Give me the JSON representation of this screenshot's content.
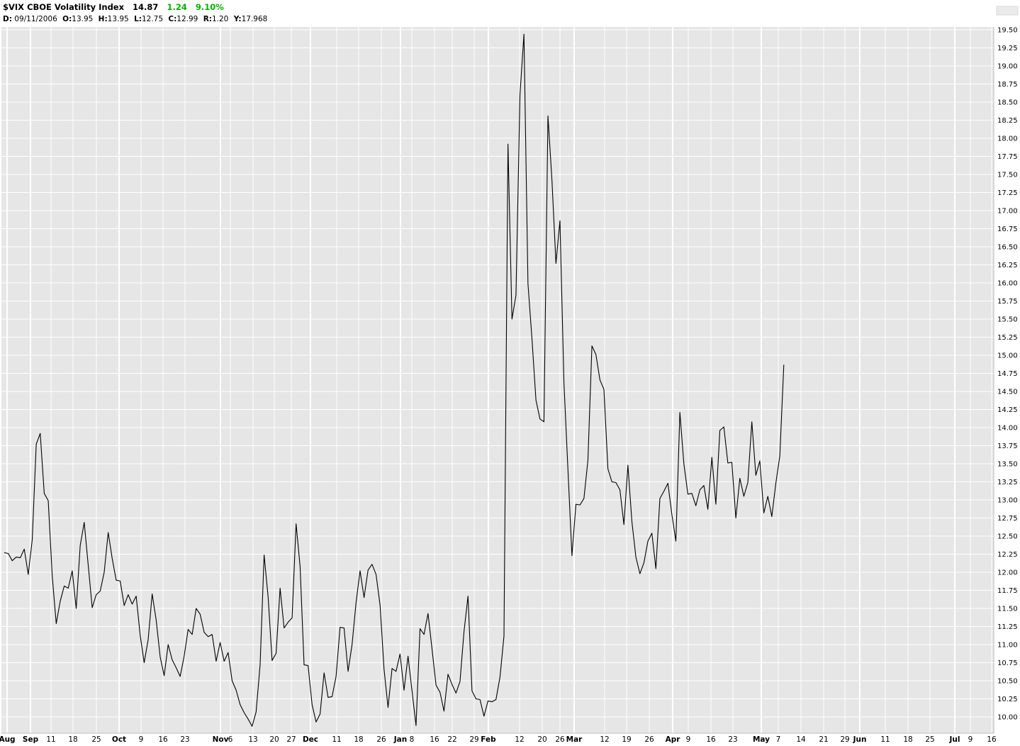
{
  "header": {
    "symbol": "$VIX",
    "name": "CBOE Volatility Index",
    "last": "14.87",
    "change": "1.24",
    "change_pct": "9.10%",
    "change_color": "#00b000",
    "date_label": "D:",
    "date": "09/11/2006",
    "open_label": "O:",
    "open": "13.95",
    "high_label": "H:",
    "high": "13.95",
    "low_label": "L:",
    "low": "12.75",
    "close_label": "C:",
    "close": "12.99",
    "range_label": "R:",
    "range": "1.20",
    "y_label": "Y:",
    "y": "17.968"
  },
  "colors": {
    "plot_background": "#e6e6e6",
    "grid_minor": "#ffffff",
    "line": "#000000"
  },
  "chart_data": {
    "type": "line",
    "title": "",
    "xlabel": "",
    "ylabel": "",
    "ylim": [
      9.95,
      19.55
    ],
    "y_axis_side": "right",
    "grid": true,
    "y_ticks": [
      "10.00",
      "10.25",
      "10.50",
      "10.75",
      "11.00",
      "11.25",
      "11.50",
      "11.75",
      "12.00",
      "12.25",
      "12.50",
      "12.75",
      "13.00",
      "13.25",
      "13.50",
      "13.75",
      "14.00",
      "14.25",
      "14.50",
      "14.75",
      "15.00",
      "15.25",
      "15.50",
      "15.75",
      "16.00",
      "16.25",
      "16.50",
      "16.75",
      "17.00",
      "17.25",
      "17.50",
      "17.75",
      "18.00",
      "18.25",
      "18.50",
      "18.75",
      "19.00",
      "19.25",
      "19.50"
    ],
    "x_ticks": [
      {
        "label": "Aug",
        "major": true
      },
      {
        "label": "Sep",
        "major": true
      },
      {
        "label": "11",
        "major": false
      },
      {
        "label": "18",
        "major": false
      },
      {
        "label": "25",
        "major": false
      },
      {
        "label": "Oct",
        "major": true
      },
      {
        "label": "9",
        "major": false
      },
      {
        "label": "16",
        "major": false
      },
      {
        "label": "23",
        "major": false
      },
      {
        "label": "Nov",
        "major": true
      },
      {
        "label": "6",
        "major": false
      },
      {
        "label": "13",
        "major": false
      },
      {
        "label": "20",
        "major": false
      },
      {
        "label": "27",
        "major": false
      },
      {
        "label": "Dec",
        "major": true
      },
      {
        "label": "11",
        "major": false
      },
      {
        "label": "18",
        "major": false
      },
      {
        "label": "26",
        "major": false
      },
      {
        "label": "Jan",
        "major": true
      },
      {
        "label": "8",
        "major": false
      },
      {
        "label": "16",
        "major": false
      },
      {
        "label": "22",
        "major": false
      },
      {
        "label": "29",
        "major": false
      },
      {
        "label": "Feb",
        "major": true
      },
      {
        "label": "12",
        "major": false
      },
      {
        "label": "20",
        "major": false
      },
      {
        "label": "26",
        "major": false
      },
      {
        "label": "Mar",
        "major": true
      },
      {
        "label": "12",
        "major": false
      },
      {
        "label": "19",
        "major": false
      },
      {
        "label": "26",
        "major": false
      },
      {
        "label": "Apr",
        "major": true
      },
      {
        "label": "9",
        "major": false
      },
      {
        "label": "16",
        "major": false
      },
      {
        "label": "23",
        "major": false
      },
      {
        "label": "May",
        "major": true
      },
      {
        "label": "7",
        "major": false
      },
      {
        "label": "14",
        "major": false
      },
      {
        "label": "21",
        "major": false
      },
      {
        "label": "29",
        "major": false
      },
      {
        "label": "Jun",
        "major": true
      },
      {
        "label": "11",
        "major": false
      },
      {
        "label": "18",
        "major": false
      },
      {
        "label": "25",
        "major": false
      },
      {
        "label": "Jul",
        "major": true
      },
      {
        "label": "9",
        "major": false
      },
      {
        "label": "16",
        "major": false
      }
    ],
    "series": [
      {
        "values": [
          12.27,
          12.26,
          12.16,
          12.21,
          12.2,
          12.32,
          11.97,
          12.45,
          13.77,
          13.92,
          13.09,
          12.99,
          11.95,
          11.29,
          11.6,
          11.81,
          11.78,
          12.02,
          11.5,
          12.37,
          12.69,
          12.1,
          11.51,
          11.69,
          11.74,
          12.0,
          12.55,
          12.19,
          11.89,
          11.88,
          11.54,
          11.69,
          11.56,
          11.67,
          11.13,
          10.75,
          11.07,
          11.7,
          11.34,
          10.83,
          10.57,
          11.0,
          10.79,
          10.68,
          10.56,
          10.84,
          11.21,
          11.14,
          11.5,
          11.42,
          11.17,
          11.11,
          11.14,
          10.77,
          11.03,
          10.77,
          10.89,
          10.5,
          10.37,
          10.17,
          10.06,
          9.97,
          9.87,
          10.07,
          10.72,
          12.24,
          11.66,
          10.78,
          10.88,
          11.78,
          11.23,
          11.31,
          11.37,
          12.67,
          12.08,
          10.72,
          10.71,
          10.17,
          9.93,
          10.04,
          10.61,
          10.27,
          10.28,
          10.56,
          11.24,
          11.23,
          10.63,
          11.0,
          11.58,
          12.02,
          11.65,
          12.03,
          12.11,
          11.97,
          11.55,
          10.66,
          10.13,
          10.67,
          10.63,
          10.87,
          10.37,
          10.84,
          10.36,
          9.88,
          11.22,
          11.14,
          11.43,
          10.94,
          10.44,
          10.34,
          10.08,
          10.59,
          10.45,
          10.33,
          10.49,
          11.18,
          11.67,
          10.36,
          10.25,
          10.24,
          10.01,
          10.22,
          10.21,
          10.24,
          10.55,
          11.12,
          17.92,
          15.5,
          15.83,
          18.6,
          19.44,
          15.99,
          15.23,
          14.38,
          14.12,
          14.08,
          18.31,
          17.42,
          16.27,
          16.86,
          14.62,
          13.42,
          12.23,
          12.94,
          12.93,
          13.02,
          13.55,
          15.13,
          15.01,
          14.66,
          14.53,
          13.43,
          13.25,
          13.24,
          13.14,
          12.66,
          13.48,
          12.7,
          12.21,
          11.98,
          12.13,
          12.43,
          12.54,
          12.05,
          13.02,
          13.12,
          13.23,
          12.8,
          12.43,
          14.21,
          13.5,
          13.08,
          13.09,
          12.92,
          13.14,
          13.2,
          12.87,
          13.59,
          12.94,
          13.96,
          14.01,
          13.51,
          13.52,
          12.75,
          13.3,
          13.05,
          13.24,
          14.08,
          13.34,
          13.54,
          12.82,
          13.05,
          12.77,
          13.23,
          13.61,
          14.87
        ]
      }
    ]
  }
}
